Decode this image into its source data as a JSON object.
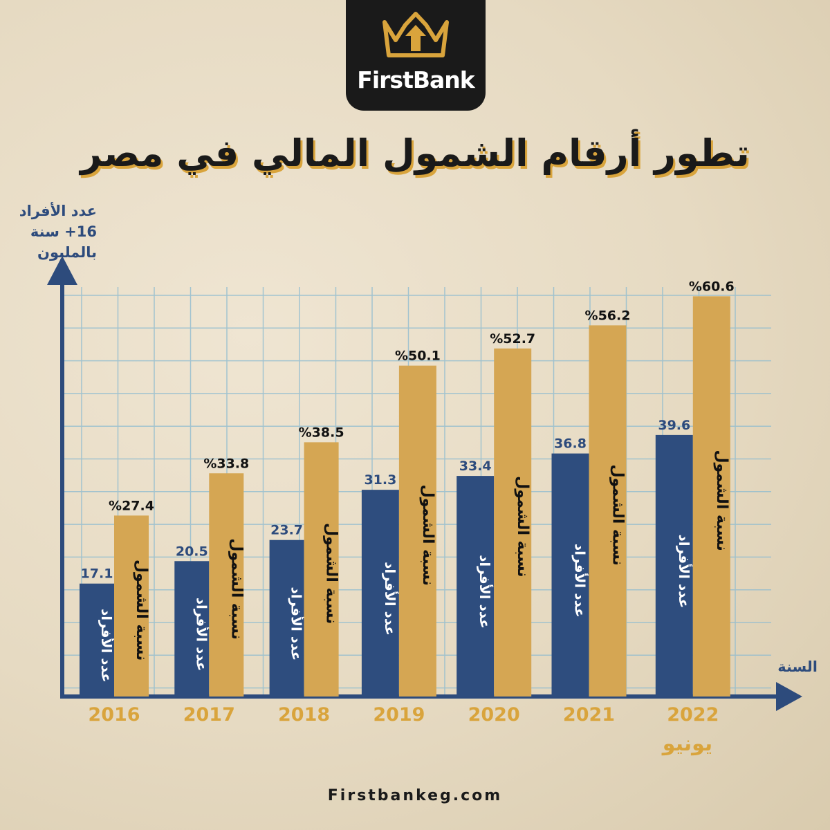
{
  "brand": {
    "name": "FirstBank",
    "logo_icon": "crown-arrow-icon",
    "logo_color": "#d9a43c"
  },
  "title": "تطور أرقام الشمول المالي في مصر",
  "colors": {
    "individuals": "#2e4d7e",
    "inclusion": "#d5a653",
    "axis": "#2d4b7c",
    "grid": "#8fbcd0",
    "year_labels": "#d9a43c"
  },
  "chart_data": {
    "type": "bar",
    "y_axis_label": [
      "عدد الأفراد",
      "16+ سنة",
      "بالمليون"
    ],
    "x_axis_label": "السنة",
    "categories": [
      "2016",
      "2017",
      "2018",
      "2019",
      "2020",
      "2021",
      "2022"
    ],
    "category_sublabels": {
      "2022": "يونيو"
    },
    "ylim": [
      0,
      62
    ],
    "grid": true,
    "series": [
      {
        "name": "عدد الأفراد",
        "values": [
          17.1,
          20.5,
          23.7,
          31.3,
          33.4,
          36.8,
          39.6
        ],
        "labels": [
          "17.1",
          "20.5",
          "23.7",
          "31.3",
          "33.4",
          "36.8",
          "39.6"
        ]
      },
      {
        "name": "نسبة الشمول",
        "values": [
          27.4,
          33.8,
          38.5,
          50.1,
          52.7,
          56.2,
          60.6
        ],
        "labels": [
          "%27.4",
          "%33.8",
          "%38.5",
          "%50.1",
          "%52.7",
          "%56.2",
          "%60.6"
        ]
      }
    ]
  },
  "footer": "Firstbankeg.com"
}
